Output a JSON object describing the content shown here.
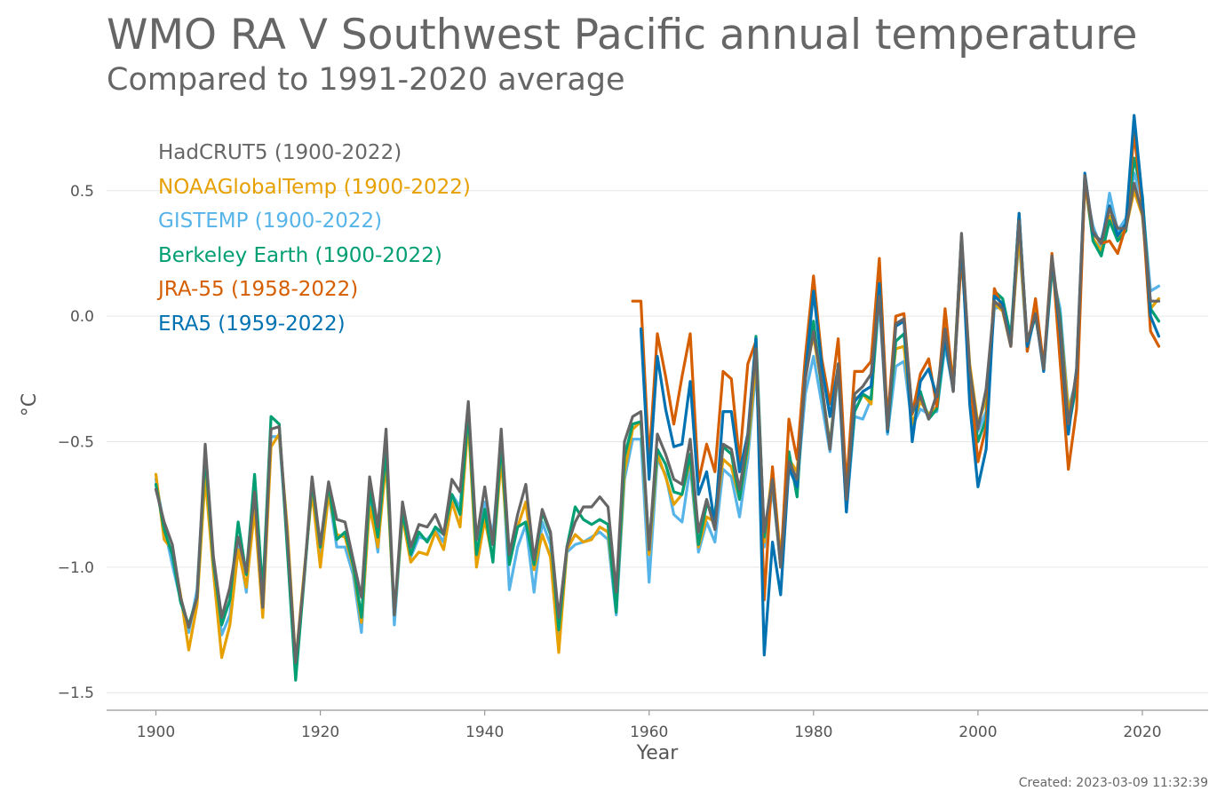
{
  "page": {
    "title": "WMO RA V Southwest Pacific annual temperature",
    "subtitle": "Compared to 1991-2020 average",
    "created": "Created: 2023-03-09 11:32:39"
  },
  "chart_data": {
    "type": "line",
    "title": "WMO RA V Southwest Pacific annual temperature",
    "subtitle": "Compared to 1991-2020 average",
    "xlabel": "Year",
    "ylabel": "°C",
    "xlim": [
      1894,
      2028
    ],
    "ylim": [
      -1.57,
      0.8
    ],
    "xticks": [
      1900,
      1920,
      1940,
      1960,
      1980,
      2000,
      2020
    ],
    "yticks": [
      0.5,
      0.0,
      -0.5,
      -1.0,
      -1.5
    ],
    "ytick_labels": [
      "0.5",
      "0.0",
      "−0.5",
      "−1.0",
      "−1.5"
    ],
    "grid": "horizontal",
    "legend_position": "top-left",
    "series": [
      {
        "name": "HadCRUT5 (1900-2022)",
        "color": "#666666",
        "start_year": 1900,
        "values": [
          -0.69,
          -0.82,
          -0.91,
          -1.12,
          -1.24,
          -1.12,
          -0.51,
          -0.96,
          -1.2,
          -1.08,
          -0.88,
          -1.02,
          -0.7,
          -1.16,
          -0.45,
          -0.44,
          -0.89,
          -1.38,
          -1.05,
          -0.64,
          -0.91,
          -0.66,
          -0.81,
          -0.82,
          -0.97,
          -1.12,
          -0.64,
          -0.84,
          -0.45,
          -1.19,
          -0.74,
          -0.92,
          -0.83,
          -0.84,
          -0.79,
          -0.87,
          -0.65,
          -0.7,
          -0.34,
          -0.89,
          -0.68,
          -0.91,
          -0.45,
          -0.95,
          -0.79,
          -0.67,
          -0.97,
          -0.77,
          -0.86,
          -1.2,
          -0.92,
          -0.82,
          -0.76,
          -0.76,
          -0.72,
          -0.76,
          -1.1,
          -0.5,
          -0.4,
          -0.38,
          -0.93,
          -0.47,
          -0.55,
          -0.65,
          -0.67,
          -0.49,
          -0.86,
          -0.73,
          -0.85,
          -0.51,
          -0.53,
          -0.69,
          -0.48,
          -0.13,
          -0.86,
          -0.65,
          -1.0,
          -0.58,
          -0.65,
          -0.25,
          -0.06,
          -0.27,
          -0.53,
          -0.19,
          -0.73,
          -0.31,
          -0.28,
          -0.23,
          0.08,
          -0.45,
          -0.03,
          -0.01,
          -0.38,
          -0.32,
          -0.41,
          -0.31,
          -0.05,
          -0.3,
          0.33,
          -0.21,
          -0.45,
          -0.29,
          0.06,
          0.03,
          -0.12,
          0.38,
          -0.1,
          0.01,
          -0.21,
          0.24,
          -0.03,
          -0.43,
          -0.22,
          0.56,
          0.34,
          0.29,
          0.43,
          0.35,
          0.35,
          0.53,
          0.41,
          0.06,
          0.06
        ]
      },
      {
        "name": "NOAAGlobalTemp (1900-2022)",
        "color": "#E6A000",
        "start_year": 1900,
        "values": [
          -0.63,
          -0.89,
          -0.93,
          -1.11,
          -1.33,
          -1.15,
          -0.64,
          -1.02,
          -1.36,
          -1.23,
          -0.93,
          -1.08,
          -0.77,
          -1.2,
          -0.52,
          -0.47,
          -0.85,
          -1.38,
          -1.03,
          -0.7,
          -1.0,
          -0.71,
          -0.87,
          -0.88,
          -1.0,
          -1.22,
          -0.76,
          -0.92,
          -0.58,
          -1.19,
          -0.8,
          -0.98,
          -0.94,
          -0.95,
          -0.86,
          -0.93,
          -0.74,
          -0.84,
          -0.42,
          -1.0,
          -0.81,
          -0.97,
          -0.57,
          -0.98,
          -0.84,
          -0.74,
          -1.01,
          -0.87,
          -0.96,
          -1.34,
          -0.93,
          -0.87,
          -0.9,
          -0.89,
          -0.84,
          -0.86,
          -1.16,
          -0.62,
          -0.45,
          -0.42,
          -0.95,
          -0.55,
          -0.64,
          -0.75,
          -0.71,
          -0.57,
          -0.92,
          -0.8,
          -0.82,
          -0.57,
          -0.6,
          -0.73,
          -0.53,
          -0.18,
          -0.9,
          -0.61,
          -0.96,
          -0.57,
          -0.62,
          -0.22,
          -0.08,
          -0.28,
          -0.51,
          -0.21,
          -0.74,
          -0.33,
          -0.31,
          -0.35,
          0.13,
          -0.42,
          -0.13,
          -0.12,
          -0.43,
          -0.34,
          -0.39,
          -0.36,
          -0.02,
          -0.26,
          0.3,
          -0.19,
          -0.43,
          -0.33,
          0.05,
          0.02,
          -0.12,
          0.33,
          -0.12,
          0.03,
          -0.21,
          0.22,
          -0.01,
          -0.38,
          -0.26,
          0.53,
          0.31,
          0.26,
          0.4,
          0.31,
          0.35,
          0.5,
          0.4,
          0.03,
          0.07
        ]
      },
      {
        "name": "GISTEMP (1900-2022)",
        "color": "#56B4E9",
        "start_year": 1900,
        "values": [
          -0.65,
          -0.84,
          -0.99,
          -1.13,
          -1.26,
          -1.09,
          -0.55,
          -0.99,
          -1.27,
          -1.19,
          -0.89,
          -1.1,
          -0.68,
          -1.13,
          -0.48,
          -0.48,
          -0.9,
          -1.41,
          -1.05,
          -0.68,
          -0.96,
          -0.7,
          -0.92,
          -0.92,
          -1.03,
          -1.26,
          -0.72,
          -0.94,
          -0.49,
          -1.23,
          -0.79,
          -0.96,
          -0.88,
          -0.89,
          -0.85,
          -0.9,
          -0.71,
          -0.76,
          -0.39,
          -0.97,
          -0.74,
          -0.87,
          -0.5,
          -1.09,
          -0.92,
          -0.83,
          -1.1,
          -0.82,
          -0.91,
          -1.31,
          -0.94,
          -0.91,
          -0.9,
          -0.88,
          -0.86,
          -0.89,
          -1.19,
          -0.65,
          -0.49,
          -0.49,
          -1.06,
          -0.57,
          -0.63,
          -0.79,
          -0.82,
          -0.6,
          -0.94,
          -0.82,
          -0.9,
          -0.61,
          -0.64,
          -0.8,
          -0.57,
          -0.21,
          -0.92,
          -0.69,
          -0.98,
          -0.61,
          -0.68,
          -0.31,
          -0.16,
          -0.35,
          -0.54,
          -0.22,
          -0.78,
          -0.4,
          -0.41,
          -0.33,
          0.06,
          -0.47,
          -0.2,
          -0.18,
          -0.44,
          -0.37,
          -0.39,
          -0.38,
          -0.12,
          -0.29,
          0.26,
          -0.25,
          -0.46,
          -0.38,
          0.03,
          0.04,
          -0.1,
          0.31,
          -0.14,
          0.02,
          -0.22,
          0.18,
          0.03,
          -0.37,
          -0.25,
          0.52,
          0.36,
          0.27,
          0.49,
          0.34,
          0.39,
          0.57,
          0.46,
          0.1,
          0.12
        ]
      },
      {
        "name": "Berkeley Earth (1900-2022)",
        "color": "#009E73",
        "start_year": 1900,
        "values": [
          -0.67,
          -0.85,
          -0.95,
          -1.14,
          -1.23,
          -1.12,
          -0.55,
          -0.98,
          -1.23,
          -1.13,
          -0.82,
          -1.03,
          -0.63,
          -1.1,
          -0.4,
          -0.43,
          -0.94,
          -1.45,
          -1.06,
          -0.66,
          -0.92,
          -0.67,
          -0.89,
          -0.86,
          -0.99,
          -1.2,
          -0.69,
          -0.88,
          -0.53,
          -1.19,
          -0.78,
          -0.95,
          -0.86,
          -0.9,
          -0.84,
          -0.87,
          -0.71,
          -0.79,
          -0.38,
          -0.95,
          -0.77,
          -0.98,
          -0.5,
          -0.99,
          -0.84,
          -0.82,
          -0.99,
          -0.78,
          -0.87,
          -1.25,
          -0.92,
          -0.76,
          -0.81,
          -0.83,
          -0.81,
          -0.83,
          -1.18,
          -0.56,
          -0.43,
          -0.42,
          -0.92,
          -0.53,
          -0.59,
          -0.7,
          -0.71,
          -0.55,
          -0.91,
          -0.75,
          -0.79,
          -0.52,
          -0.55,
          -0.73,
          -0.51,
          -0.08,
          -0.88,
          -0.66,
          -1.0,
          -0.54,
          -0.72,
          -0.19,
          -0.02,
          -0.29,
          -0.52,
          -0.19,
          -0.75,
          -0.38,
          -0.31,
          -0.33,
          0.11,
          -0.46,
          -0.1,
          -0.07,
          -0.39,
          -0.3,
          -0.41,
          -0.37,
          -0.09,
          -0.29,
          0.32,
          -0.25,
          -0.5,
          -0.41,
          0.1,
          0.07,
          -0.08,
          0.4,
          -0.11,
          0.0,
          -0.2,
          0.19,
          0.0,
          -0.45,
          -0.27,
          0.55,
          0.3,
          0.24,
          0.38,
          0.3,
          0.34,
          0.63,
          0.48,
          0.03,
          -0.02
        ]
      },
      {
        "name": "JRA-55 (1958-2022)",
        "color": "#D55E00",
        "start_year": 1958,
        "values": [
          0.06,
          0.06,
          -0.58,
          -0.07,
          -0.24,
          -0.43,
          -0.24,
          -0.07,
          -0.66,
          -0.51,
          -0.62,
          -0.22,
          -0.25,
          -0.58,
          -0.19,
          -0.1,
          -1.13,
          -0.6,
          -1.0,
          -0.41,
          -0.57,
          -0.16,
          0.16,
          -0.17,
          -0.35,
          -0.09,
          -0.68,
          -0.22,
          -0.22,
          -0.18,
          0.23,
          -0.42,
          0.0,
          0.01,
          -0.39,
          -0.23,
          -0.17,
          -0.36,
          0.03,
          -0.28,
          0.24,
          -0.23,
          -0.58,
          -0.44,
          0.11,
          0.03,
          -0.12,
          0.41,
          -0.14,
          0.07,
          -0.2,
          0.25,
          -0.18,
          -0.61,
          -0.37,
          0.54,
          0.33,
          0.29,
          0.3,
          0.25,
          0.36,
          0.73,
          0.43,
          -0.06,
          -0.12
        ]
      },
      {
        "name": "ERA5 (1959-2022)",
        "color": "#0072B2",
        "start_year": 1959,
        "values": [
          -0.05,
          -0.65,
          -0.16,
          -0.37,
          -0.52,
          -0.51,
          -0.26,
          -0.71,
          -0.62,
          -0.83,
          -0.38,
          -0.38,
          -0.62,
          -0.47,
          -0.09,
          -1.35,
          -0.9,
          -1.11,
          -0.6,
          -0.68,
          -0.23,
          0.1,
          -0.2,
          -0.4,
          -0.2,
          -0.78,
          -0.34,
          -0.3,
          -0.28,
          0.13,
          -0.46,
          -0.04,
          -0.02,
          -0.5,
          -0.26,
          -0.21,
          -0.32,
          -0.09,
          -0.3,
          0.31,
          -0.35,
          -0.68,
          -0.53,
          0.08,
          0.05,
          -0.11,
          0.41,
          -0.12,
          0.01,
          -0.22,
          0.23,
          -0.06,
          -0.47,
          -0.21,
          0.57,
          0.33,
          0.3,
          0.44,
          0.32,
          0.37,
          0.8,
          0.47,
          0.0,
          -0.08
        ]
      }
    ]
  }
}
